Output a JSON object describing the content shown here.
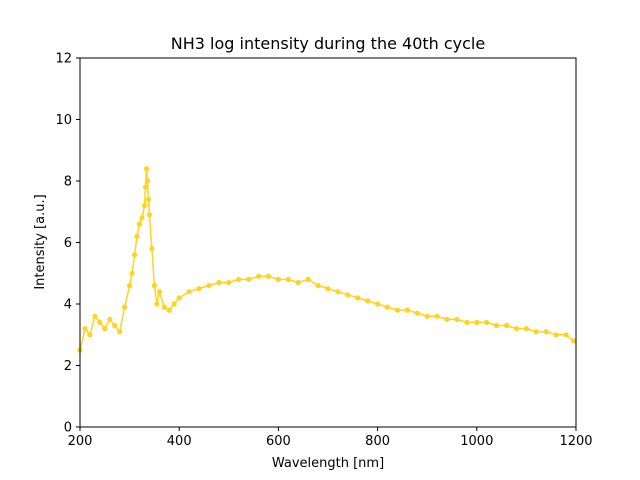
{
  "chart_data": {
    "type": "line",
    "title": "NH3 log intensity during the 40th cycle",
    "xlabel": "Wavelength [nm]",
    "ylabel": "Intensity [a.u.]",
    "xlim": [
      200,
      1200
    ],
    "ylim": [
      0,
      12
    ],
    "xticks": [
      200,
      400,
      600,
      800,
      1000,
      1200
    ],
    "yticks": [
      0,
      2,
      4,
      6,
      8,
      10,
      12
    ],
    "grid": false,
    "legend": "none",
    "marker": "circle",
    "series": [
      {
        "color": "#ffd320",
        "x": [
          200,
          210,
          220,
          230,
          240,
          250,
          260,
          270,
          280,
          290,
          300,
          305,
          310,
          315,
          320,
          325,
          330,
          332,
          334,
          336,
          338,
          340,
          345,
          350,
          355,
          360,
          370,
          380,
          390,
          400,
          420,
          440,
          460,
          480,
          500,
          520,
          540,
          560,
          580,
          600,
          620,
          640,
          660,
          680,
          700,
          720,
          740,
          760,
          780,
          800,
          820,
          840,
          860,
          880,
          900,
          920,
          940,
          960,
          980,
          1000,
          1020,
          1040,
          1060,
          1080,
          1100,
          1120,
          1140,
          1160,
          1180,
          1195
        ],
        "y": [
          2.5,
          3.2,
          3.0,
          3.6,
          3.4,
          3.2,
          3.5,
          3.3,
          3.1,
          3.9,
          4.6,
          5.0,
          5.6,
          6.2,
          6.6,
          6.8,
          7.2,
          7.8,
          8.4,
          8.0,
          7.4,
          6.9,
          5.8,
          4.6,
          4.0,
          4.4,
          3.9,
          3.8,
          4.0,
          4.2,
          4.4,
          4.5,
          4.6,
          4.7,
          4.7,
          4.8,
          4.8,
          4.9,
          4.9,
          4.8,
          4.8,
          4.7,
          4.8,
          4.6,
          4.5,
          4.4,
          4.3,
          4.2,
          4.1,
          4.0,
          3.9,
          3.8,
          3.8,
          3.7,
          3.6,
          3.6,
          3.5,
          3.5,
          3.4,
          3.4,
          3.4,
          3.3,
          3.3,
          3.2,
          3.2,
          3.1,
          3.1,
          3.0,
          3.0,
          2.8
        ]
      }
    ]
  }
}
